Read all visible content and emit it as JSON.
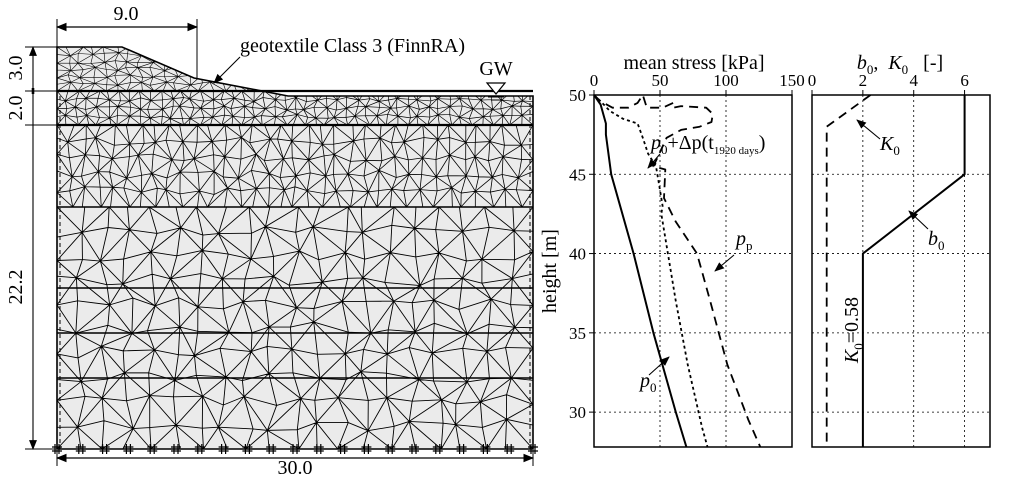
{
  "dimensions": {
    "top_width": "9.0",
    "bottom_width": "30.0",
    "heights": [
      "3.0",
      "2.0",
      "22.2"
    ]
  },
  "labels": {
    "geotextile": "geotextile Class 3 (FinnRA)",
    "groundwater": "GW"
  },
  "colors": {
    "line": "#000000",
    "soil_fill": "#ebebeb",
    "background": "#ffffff"
  },
  "chart_data": [
    {
      "type": "line",
      "title": "mean stress   [kPa]",
      "ylabel": "height   [m]",
      "xlim": [
        0,
        150
      ],
      "ylim": [
        27.8,
        50
      ],
      "x_ticks": [
        "0",
        "50",
        "100",
        "150"
      ],
      "y_ticks": [
        "50",
        "45",
        "40",
        "35",
        "30"
      ],
      "grid": true,
      "series": [
        {
          "name": "p0+Δp(t1920 days)",
          "style": "dotted",
          "points": [
            [
              0,
              50
            ],
            [
              5,
              49.6
            ],
            [
              12,
              49
            ],
            [
              22,
              48.5
            ],
            [
              33,
              48.2
            ],
            [
              37,
              47.3
            ],
            [
              41,
              46.3
            ],
            [
              47,
              45.5
            ],
            [
              49,
              44.5
            ],
            [
              52,
              43
            ],
            [
              51,
              42.5
            ],
            [
              56,
              40
            ],
            [
              62,
              37
            ],
            [
              71,
              33
            ],
            [
              82,
              29
            ],
            [
              86,
              27.8
            ]
          ]
        },
        {
          "name": "pp",
          "style": "dashed",
          "points": [
            [
              0,
              50
            ],
            [
              5,
              49.6
            ],
            [
              14,
              49.2
            ],
            [
              26,
              49.2
            ],
            [
              33,
              49.5
            ],
            [
              37,
              50
            ],
            [
              40,
              49.2
            ],
            [
              52,
              49.2
            ],
            [
              60,
              49.5
            ],
            [
              60,
              49.2
            ],
            [
              66,
              49.3
            ],
            [
              85,
              49.2
            ],
            [
              90,
              48.8
            ],
            [
              89,
              48.3
            ],
            [
              80,
              48
            ],
            [
              66,
              47.8
            ],
            [
              55,
              47.3
            ],
            [
              45,
              45.5
            ],
            [
              54,
              45.3
            ],
            [
              53,
              43.5
            ],
            [
              62,
              42
            ],
            [
              78,
              40
            ],
            [
              88,
              37
            ],
            [
              101,
              33
            ],
            [
              117,
              29.5
            ],
            [
              126,
              27.8
            ]
          ]
        },
        {
          "name": "p0",
          "style": "solid",
          "points": [
            [
              0,
              50
            ],
            [
              5,
              49.4
            ],
            [
              9,
              48.2
            ],
            [
              9,
              47.5
            ],
            [
              13,
              45
            ],
            [
              30,
              40
            ],
            [
              45,
              35
            ],
            [
              62,
              30
            ],
            [
              70,
              27.8
            ]
          ]
        }
      ],
      "annotations": [
        {
          "base": "p",
          "sub": "0",
          "rest": "+Δp(t",
          "rest_sub": "1920 days",
          "tail": ")"
        },
        {
          "base": "p",
          "sub": "p"
        },
        {
          "base": "p",
          "sub": "0"
        }
      ]
    },
    {
      "type": "line",
      "title_parts": {
        "b": "b",
        "b_sub": "0",
        "sep": ",  ",
        "k": "K",
        "k_sub": "0",
        "unit": "   [-]"
      },
      "xlim": [
        0,
        7
      ],
      "ylim": [
        27.8,
        50
      ],
      "x_ticks": [
        "0",
        "2",
        "4",
        "6"
      ],
      "grid": true,
      "series": [
        {
          "name": "K0",
          "style": "dashed",
          "points": [
            [
              2.3,
              50
            ],
            [
              0.58,
              48
            ],
            [
              0.58,
              27.8
            ]
          ]
        },
        {
          "name": "b0",
          "style": "solid",
          "points": [
            [
              6,
              50
            ],
            [
              6,
              45
            ],
            [
              2,
              40
            ],
            [
              2,
              27.8
            ]
          ]
        }
      ],
      "annotations": [
        {
          "base": "K",
          "sub": "0"
        },
        {
          "base": "b",
          "sub": "0"
        },
        {
          "base": "K",
          "sub": "0",
          "rest": "=0.58",
          "rotated": true
        }
      ]
    }
  ]
}
